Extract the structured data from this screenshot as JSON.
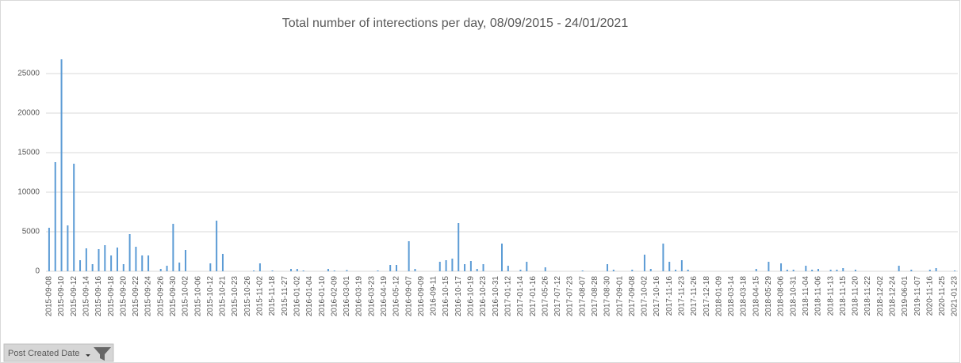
{
  "chart_data": {
    "type": "bar",
    "title": "Total number of interections per day,  08/09/2015 - 24/01/2021",
    "categories": [
      "2015-09-08",
      null,
      "2015-09-10",
      null,
      "2015-09-12",
      null,
      "2015-09-14",
      null,
      "2015-09-16",
      null,
      "2015-09-18",
      null,
      "2015-09-20",
      null,
      "2015-09-22",
      null,
      "2015-09-24",
      null,
      "2015-09-26",
      null,
      "2015-09-30",
      null,
      "2015-10-02",
      null,
      "2015-10-06",
      null,
      "2015-10-12",
      null,
      "2015-10-21",
      null,
      "2015-10-23",
      null,
      "2015-10-26",
      null,
      "2015-11-02",
      null,
      "2015-11-18",
      null,
      "2015-11-27",
      null,
      "2016-01-02",
      null,
      "2016-01-04",
      null,
      "2016-01-10",
      null,
      "2016-02-09",
      null,
      "2016-03-01",
      null,
      "2016-03-19",
      null,
      "2016-03-23",
      null,
      "2016-04-19",
      null,
      "2016-05-12",
      null,
      "2016-09-07",
      null,
      "2016-09-09",
      null,
      "2016-09-11",
      null,
      "2016-10-15",
      null,
      "2016-10-17",
      null,
      "2016-10-19",
      null,
      "2016-10-23",
      null,
      "2016-10-31",
      null,
      "2017-01-12",
      null,
      "2017-01-14",
      null,
      "2017-01-16",
      null,
      "2017-05-26",
      null,
      "2017-07-12",
      null,
      "2017-07-23",
      null,
      "2017-08-07",
      null,
      "2017-08-28",
      null,
      "2017-08-30",
      null,
      "2017-09-01",
      null,
      "2017-09-08",
      null,
      "2017-10-02",
      null,
      "2017-10-16",
      null,
      "2017-11-16",
      null,
      "2017-11-23",
      null,
      "2017-11-26",
      null,
      "2017-12-18",
      null,
      "2018-01-09",
      null,
      "2018-03-14",
      null,
      "2018-03-18",
      null,
      "2018-04-15",
      null,
      "2018-05-29",
      null,
      "2018-08-06",
      null,
      "2018-10-31",
      null,
      "2018-11-04",
      null,
      "2018-11-06",
      null,
      "2018-11-13",
      null,
      "2018-11-15",
      null,
      "2018-11-20",
      null,
      "2018-11-22",
      null,
      "2018-12-02",
      null,
      "2018-12-24",
      null,
      "2019-06-01",
      null,
      "2019-11-07",
      null,
      "2020-11-16",
      null,
      "2020-11-25",
      null,
      "2021-01-23"
    ],
    "values": [
      5500,
      13800,
      26800,
      5800,
      13600,
      1400,
      2900,
      900,
      2800,
      3300,
      2000,
      3000,
      900,
      4700,
      3100,
      2000,
      2000,
      0,
      300,
      700,
      6000,
      1100,
      2700,
      0,
      0,
      0,
      1000,
      6400,
      2200,
      0,
      0,
      0,
      0,
      100,
      1000,
      0,
      100,
      0,
      0,
      300,
      300,
      100,
      0,
      0,
      0,
      300,
      100,
      0,
      150,
      0,
      0,
      0,
      0,
      100,
      0,
      800,
      800,
      0,
      3800,
      300,
      0,
      0,
      0,
      1200,
      1400,
      1600,
      6100,
      900,
      1300,
      300,
      900,
      0,
      0,
      3500,
      700,
      0,
      200,
      1200,
      0,
      0,
      500,
      0,
      0,
      0,
      0,
      0,
      100,
      0,
      0,
      0,
      900,
      200,
      0,
      0,
      200,
      0,
      2100,
      300,
      0,
      3500,
      1200,
      200,
      1400,
      200,
      0,
      0,
      0,
      0,
      0,
      0,
      0,
      0,
      0,
      0,
      300,
      0,
      1200,
      0,
      1000,
      200,
      200,
      0,
      700,
      200,
      300,
      0,
      200,
      200,
      400,
      0,
      200,
      0,
      0,
      0,
      0,
      0,
      0,
      700,
      0,
      200,
      0,
      0,
      200,
      400,
      0,
      0,
      100
    ],
    "color": "#5b9bd5",
    "ylim": [
      0,
      28000
    ],
    "yticks": [
      0,
      5000,
      10000,
      15000,
      20000,
      25000
    ],
    "grid": true,
    "field_button": "Post Created Date"
  }
}
